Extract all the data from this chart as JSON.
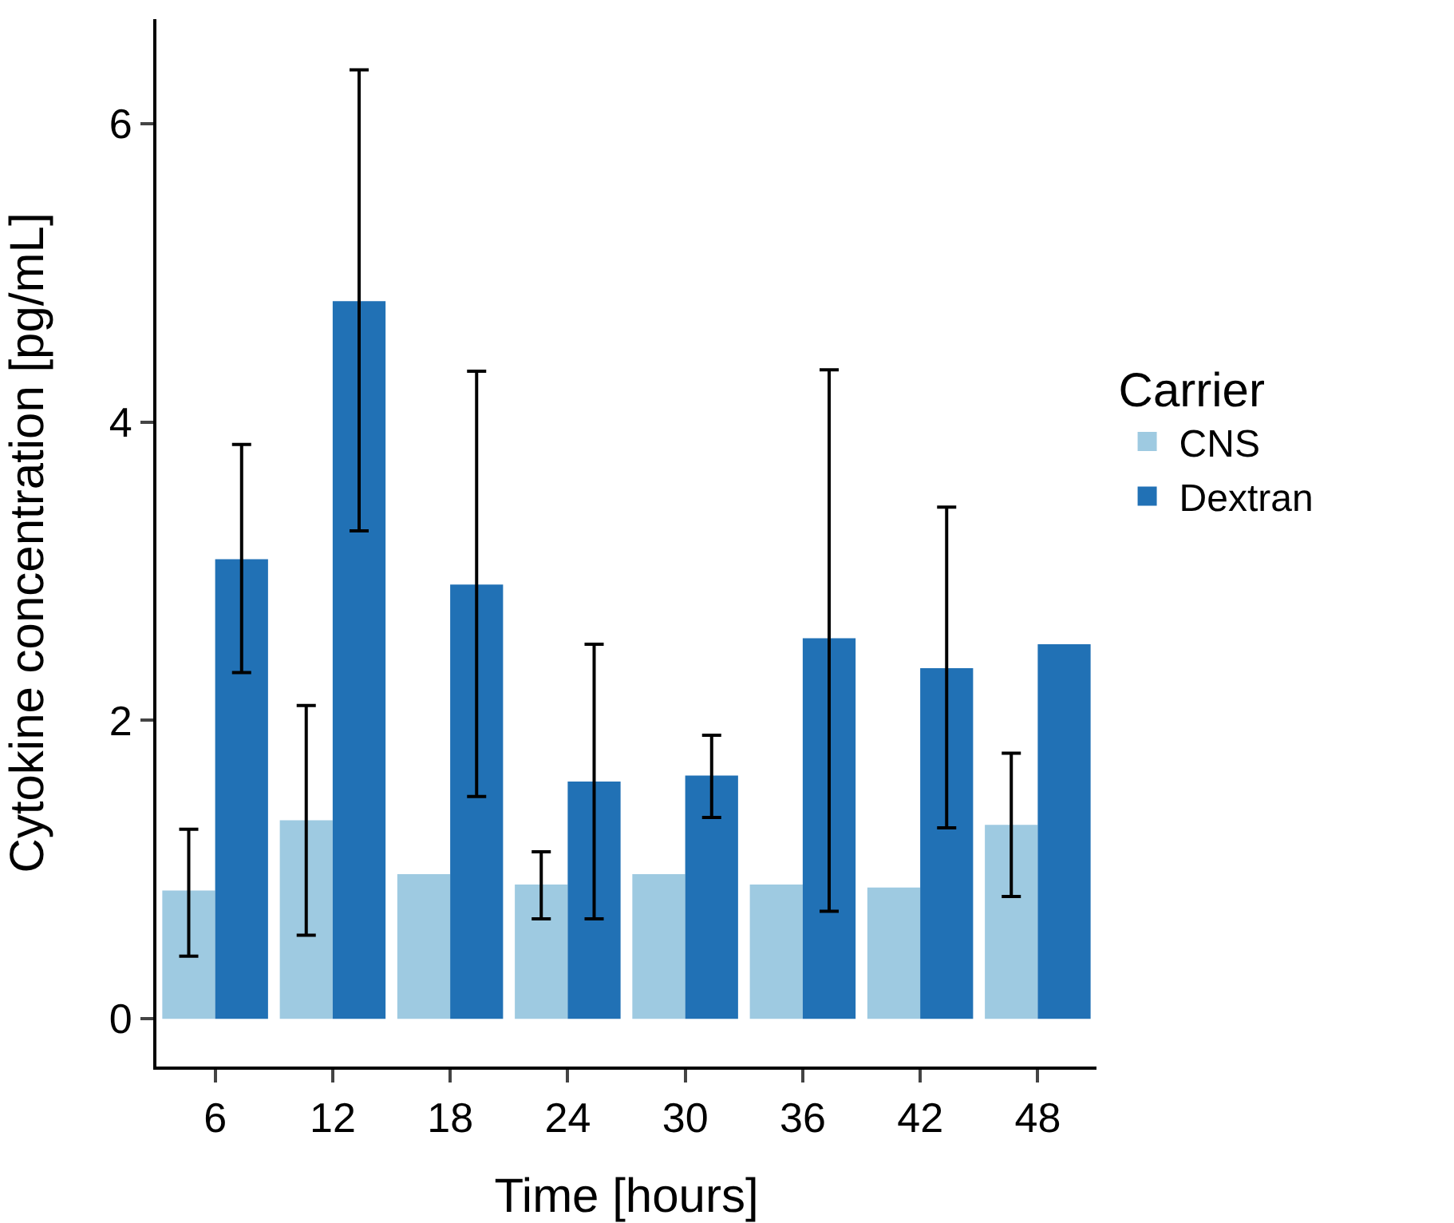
{
  "chart_data": {
    "type": "bar",
    "xlabel": "Time [hours]",
    "ylabel": "Cytokine concentration [pg/mL]",
    "legend_title": "Carrier",
    "legend": "right",
    "grid": false,
    "categories": [
      "6",
      "12",
      "18",
      "24",
      "30",
      "36",
      "42",
      "48"
    ],
    "series": [
      {
        "name": "CNS",
        "color": "#9ecae1",
        "values": [
          0.86,
          1.33,
          0.97,
          0.9,
          0.97,
          0.9,
          0.88,
          1.3
        ],
        "errors": [
          [
            0.42,
            1.27
          ],
          [
            0.56,
            2.1
          ],
          null,
          [
            0.67,
            1.12
          ],
          null,
          null,
          null,
          [
            0.82,
            1.78
          ]
        ]
      },
      {
        "name": "Dextran",
        "color": "#2171b5",
        "values": [
          3.08,
          4.81,
          2.91,
          1.59,
          1.63,
          2.55,
          2.35,
          2.51
        ],
        "errors": [
          [
            2.32,
            3.85
          ],
          [
            3.27,
            6.36
          ],
          [
            1.49,
            4.34
          ],
          [
            0.67,
            2.51
          ],
          [
            1.35,
            1.9
          ],
          [
            0.72,
            4.35
          ],
          [
            1.28,
            3.43
          ],
          null
        ]
      }
    ],
    "ylim": [
      -0.32,
      6.7
    ],
    "yticks": [
      0,
      2,
      4,
      6
    ]
  }
}
